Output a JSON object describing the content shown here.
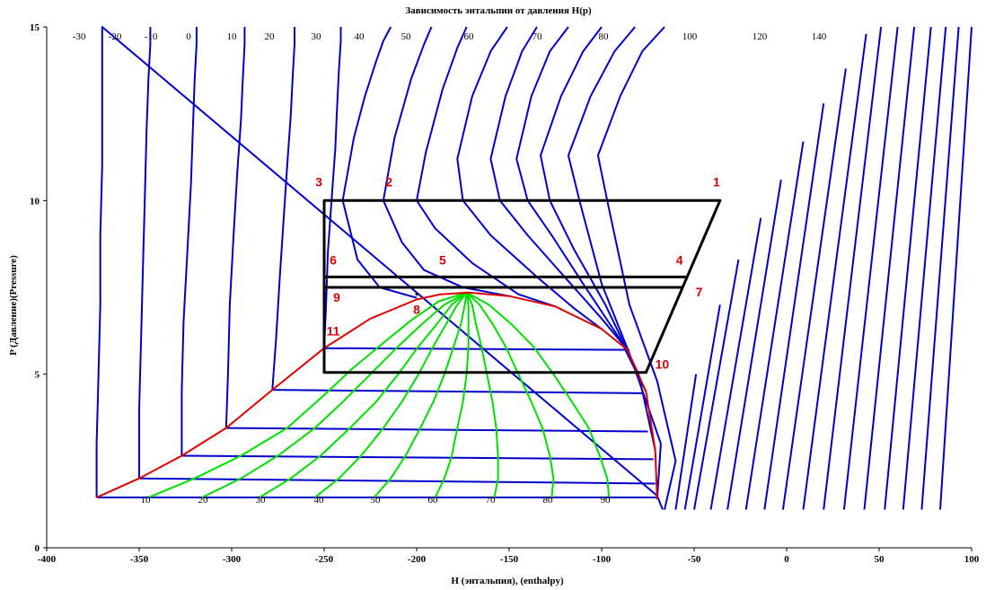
{
  "chart_data": {
    "type": "line",
    "title": "Зависимость энтальпии от давления  H(p)",
    "xlabel": "H (энтальпия), (enthalpy)",
    "ylabel": "P (Давление)(Pressure)",
    "xlim": [
      -400,
      100
    ],
    "ylim": [
      0,
      15
    ],
    "x_ticks": [
      -400,
      -350,
      -300,
      -250,
      -200,
      -150,
      -100,
      -50,
      0,
      50,
      100
    ],
    "y_ticks": [
      0,
      5,
      10,
      15
    ],
    "grid": false,
    "colors": {
      "isotherm": "#0000cc",
      "saturation_dome": "#e00000",
      "quality_lines": "#00e000",
      "cycle": "#000000",
      "point_labels": "#e00000"
    },
    "isotherm_labels_top": [
      "-30",
      "-20",
      "-10",
      "0",
      "10",
      "20",
      "30",
      "40",
      "50",
      "60",
      "70",
      "80",
      "100",
      "120",
      "140"
    ],
    "quality_labels": [
      "10",
      "20",
      "30",
      "40",
      "50",
      "60",
      "70",
      "80",
      "90"
    ],
    "saturation_dome": {
      "x": [
        -373,
        -350,
        -327,
        -303,
        -278,
        -250,
        -225,
        -200,
        -187,
        -172,
        -150,
        -125,
        -100,
        -86,
        -76,
        -71,
        -70
      ],
      "y": [
        1.45,
        2.0,
        2.65,
        3.45,
        4.55,
        5.75,
        6.6,
        7.15,
        7.3,
        7.35,
        7.25,
        6.95,
        6.3,
        5.7,
        4.5,
        2.8,
        1.4
      ]
    },
    "quality_lines": [
      {
        "x": [
          -345,
          -320,
          -295,
          -270,
          -250,
          -235,
          -218,
          -203,
          -188,
          -173
        ],
        "y": [
          1.45,
          2.0,
          2.65,
          3.45,
          4.4,
          5.15,
          5.9,
          6.55,
          7.1,
          7.35
        ]
      },
      {
        "x": [
          -316,
          -295,
          -275,
          -255,
          -240,
          -225,
          -210,
          -197,
          -185,
          -173
        ],
        "y": [
          1.45,
          2.0,
          2.65,
          3.45,
          4.2,
          5.0,
          5.8,
          6.45,
          7.0,
          7.35
        ]
      },
      {
        "x": [
          -285,
          -268,
          -252,
          -236,
          -222,
          -210,
          -199,
          -189,
          -181,
          -173
        ],
        "y": [
          1.45,
          2.0,
          2.65,
          3.45,
          4.2,
          5.0,
          5.8,
          6.45,
          7.0,
          7.35
        ]
      },
      {
        "x": [
          -255,
          -242,
          -230,
          -218,
          -208,
          -199,
          -191,
          -184,
          -178,
          -173
        ],
        "y": [
          1.45,
          2.0,
          2.65,
          3.45,
          4.2,
          5.0,
          5.8,
          6.45,
          7.0,
          7.35
        ]
      },
      {
        "x": [
          -223,
          -214,
          -206,
          -198,
          -191,
          -185,
          -180,
          -176,
          -174,
          -173
        ],
        "y": [
          1.45,
          2.0,
          2.65,
          3.45,
          4.2,
          5.0,
          5.8,
          6.45,
          7.0,
          7.35
        ]
      },
      {
        "x": [
          -190,
          -185,
          -181,
          -178,
          -175,
          -173,
          -172,
          -172,
          -172,
          -173
        ],
        "y": [
          1.45,
          2.0,
          2.65,
          3.45,
          4.2,
          5.0,
          5.8,
          6.45,
          7.0,
          7.35
        ]
      },
      {
        "x": [
          -158,
          -156,
          -156,
          -157,
          -159,
          -162,
          -165,
          -168,
          -170,
          -173
        ],
        "y": [
          1.45,
          2.0,
          2.65,
          3.45,
          4.2,
          5.0,
          5.8,
          6.45,
          7.0,
          7.35
        ]
      },
      {
        "x": [
          -127,
          -126,
          -128,
          -132,
          -138,
          -145,
          -152,
          -159,
          -166,
          -173
        ],
        "y": [
          1.45,
          2.0,
          2.65,
          3.45,
          4.2,
          5.0,
          5.8,
          6.45,
          7.0,
          7.35
        ]
      },
      {
        "x": [
          -96,
          -97,
          -101,
          -107,
          -116,
          -126,
          -137,
          -149,
          -161,
          -173
        ],
        "y": [
          1.45,
          2.0,
          2.65,
          3.45,
          4.2,
          5.0,
          5.8,
          6.45,
          7.0,
          7.35
        ]
      }
    ],
    "isotherms": [
      {
        "label": "-30",
        "x": [
          -373,
          -373,
          -372,
          -371,
          -371,
          -370,
          -370,
          -370,
          -370,
          -70,
          -67
        ],
        "y": [
          1.45,
          3.0,
          5.0,
          7.0,
          9.0,
          11.0,
          13.0,
          14.5,
          15.0,
          1.5,
          1.1
        ]
      },
      {
        "label": "-20",
        "x": [
          -350,
          -350,
          -349,
          -348,
          -347,
          -346,
          -345,
          -344,
          -344
        ],
        "y": [
          2.0,
          4.0,
          6.0,
          8.0,
          10.0,
          12.0,
          13.5,
          14.5,
          15.0
        ]
      },
      {
        "label": "-10",
        "x": [
          -327,
          -327,
          -326,
          -324,
          -322,
          -321,
          -320,
          -319,
          -319
        ],
        "y": [
          2.65,
          4.5,
          6.5,
          8.5,
          10.5,
          12.0,
          13.5,
          14.5,
          15.0
        ]
      },
      {
        "label": "0",
        "x": [
          -303,
          -302,
          -301,
          -299,
          -297,
          -295,
          -294,
          -293,
          -293
        ],
        "y": [
          3.45,
          5.0,
          7.0,
          9.0,
          10.8,
          12.3,
          13.5,
          14.5,
          15.0
        ]
      },
      {
        "label": "10",
        "x": [
          -278,
          -276,
          -274,
          -272,
          -270,
          -268,
          -267,
          -266,
          -266
        ],
        "y": [
          4.55,
          6.0,
          7.8,
          9.4,
          11.0,
          12.5,
          13.6,
          14.5,
          15.0
        ]
      },
      {
        "label": "20",
        "x": [
          -250,
          -249,
          -248,
          -246,
          -244,
          -243,
          -242,
          -241,
          -241
        ],
        "y": [
          5.75,
          7.0,
          8.5,
          10.0,
          11.5,
          12.7,
          13.8,
          14.6,
          15.0
        ]
      },
      {
        "label": "30",
        "x": [
          -200,
          -220,
          -232,
          -240,
          -234,
          -228,
          -222,
          -218,
          -214
        ],
        "y": [
          7.2,
          7.5,
          8.3,
          10.0,
          11.8,
          13.0,
          14.0,
          14.6,
          15.0
        ]
      },
      {
        "label": "40",
        "x": [
          -150,
          -175,
          -196,
          -208,
          -218,
          -212,
          -203,
          -196,
          -192
        ],
        "y": [
          7.25,
          7.5,
          8.0,
          8.8,
          10.0,
          11.8,
          13.5,
          14.5,
          15.0
        ]
      },
      {
        "label": "50",
        "x": [
          -125,
          -145,
          -170,
          -190,
          -200,
          -195,
          -186,
          -178,
          -173
        ],
        "y": [
          6.95,
          7.3,
          8.2,
          9.2,
          10.0,
          11.4,
          13.2,
          14.4,
          15.0
        ]
      },
      {
        "label": "60",
        "x": [
          -100,
          -115,
          -135,
          -160,
          -175,
          -178,
          -170,
          -160,
          -151
        ],
        "y": [
          6.3,
          6.9,
          7.8,
          9.0,
          10.0,
          11.2,
          13.0,
          14.3,
          15.0
        ]
      },
      {
        "label": "70",
        "x": [
          -86,
          -100,
          -120,
          -140,
          -155,
          -160,
          -152,
          -143,
          -135
        ],
        "y": [
          5.7,
          6.6,
          7.8,
          9.0,
          10.0,
          11.2,
          13.0,
          14.3,
          15.0
        ]
      },
      {
        "label": "80",
        "x": [
          -76,
          -90,
          -110,
          -127,
          -140,
          -146,
          -138,
          -128,
          -118
        ],
        "y": [
          4.5,
          6.0,
          7.6,
          9.0,
          10.0,
          11.2,
          13.0,
          14.3,
          15.0
        ]
      },
      {
        "label": "100",
        "x": [
          -71,
          -80,
          -98,
          -115,
          -128,
          -133,
          -122,
          -110,
          -100
        ],
        "y": [
          2.8,
          5.0,
          7.0,
          8.6,
          10.0,
          11.3,
          13.0,
          14.3,
          15.0
        ]
      },
      {
        "label": "120",
        "x": [
          -70,
          -68,
          -85,
          -100,
          -112,
          -118,
          -106,
          -93,
          -82
        ],
        "y": [
          1.4,
          3.0,
          5.6,
          7.6,
          10.0,
          11.3,
          13.0,
          14.3,
          15.0
        ]
      },
      {
        "label": "140",
        "x": [
          -66,
          -60,
          -70,
          -85,
          -97,
          -102,
          -90,
          -78,
          -66
        ],
        "y": [
          1.1,
          2.5,
          4.8,
          7.0,
          10.0,
          11.3,
          13.0,
          14.3,
          15.0
        ]
      }
    ],
    "isotherms_right": [
      {
        "x": [
          -60,
          -49
        ],
        "y": [
          1.1,
          5.0
        ]
      },
      {
        "x": [
          -55,
          -36
        ],
        "y": [
          1.1,
          7.0
        ]
      },
      {
        "x": [
          -50,
          -26
        ],
        "y": [
          1.1,
          8.3
        ]
      },
      {
        "x": [
          -41,
          -14
        ],
        "y": [
          1.1,
          9.5
        ]
      },
      {
        "x": [
          -32,
          -3
        ],
        "y": [
          1.1,
          10.6
        ]
      },
      {
        "x": [
          -22,
          9
        ],
        "y": [
          1.1,
          11.7
        ]
      },
      {
        "x": [
          -12,
          20
        ],
        "y": [
          1.1,
          12.8
        ]
      },
      {
        "x": [
          -2,
          32
        ],
        "y": [
          1.1,
          13.8
        ]
      },
      {
        "x": [
          9,
          43
        ],
        "y": [
          1.1,
          14.8
        ]
      },
      {
        "x": [
          20,
          51
        ],
        "y": [
          1.1,
          15.0
        ]
      },
      {
        "x": [
          31,
          60
        ],
        "y": [
          1.1,
          15.0
        ]
      },
      {
        "x": [
          42,
          69
        ],
        "y": [
          1.1,
          15.0
        ]
      },
      {
        "x": [
          53,
          78
        ],
        "y": [
          1.1,
          15.0
        ]
      },
      {
        "x": [
          63,
          86
        ],
        "y": [
          1.1,
          15.0
        ]
      },
      {
        "x": [
          73,
          93
        ],
        "y": [
          1.1,
          15.0
        ]
      },
      {
        "x": [
          83,
          100
        ],
        "y": [
          1.1,
          15.0
        ]
      }
    ],
    "pressure_lines": [
      {
        "x": [
          -373,
          -70
        ],
        "y": [
          1.45,
          1.45
        ]
      },
      {
        "x": [
          -350,
          -71
        ],
        "y": [
          2.0,
          1.85
        ]
      },
      {
        "x": [
          -327,
          -72
        ],
        "y": [
          2.65,
          2.55
        ]
      },
      {
        "x": [
          -303,
          -75
        ],
        "y": [
          3.45,
          3.35
        ]
      },
      {
        "x": [
          -278,
          -78
        ],
        "y": [
          4.55,
          4.45
        ]
      },
      {
        "x": [
          -250,
          -85
        ],
        "y": [
          5.75,
          5.7
        ]
      }
    ],
    "cycle": {
      "x": [
        -250,
        -36,
        -76,
        -250,
        -250
      ],
      "y": [
        10.0,
        10.0,
        5.05,
        5.05,
        10.0
      ]
    },
    "cycle_mid_lines": [
      {
        "x": [
          -250,
          -55
        ],
        "y": [
          7.8,
          7.8
        ]
      },
      {
        "x": [
          -250,
          -57
        ],
        "y": [
          7.5,
          7.5
        ]
      }
    ],
    "points": [
      {
        "label": "1",
        "x": -36,
        "y": 10.0
      },
      {
        "label": "2",
        "x": -212,
        "y": 10.0
      },
      {
        "label": "3",
        "x": -250,
        "y": 10.0
      },
      {
        "label": "4",
        "x": -55,
        "y": 7.8
      },
      {
        "label": "5",
        "x": -185,
        "y": 7.8
      },
      {
        "label": "6",
        "x": -250,
        "y": 7.8
      },
      {
        "label": "7",
        "x": -57,
        "y": 7.5
      },
      {
        "label": "8",
        "x": -200,
        "y": 7.3
      },
      {
        "label": "9",
        "x": -250,
        "y": 7.5
      },
      {
        "label": "10",
        "x": -76,
        "y": 5.05
      },
      {
        "label": "11",
        "x": -250,
        "y": 5.75
      }
    ]
  }
}
